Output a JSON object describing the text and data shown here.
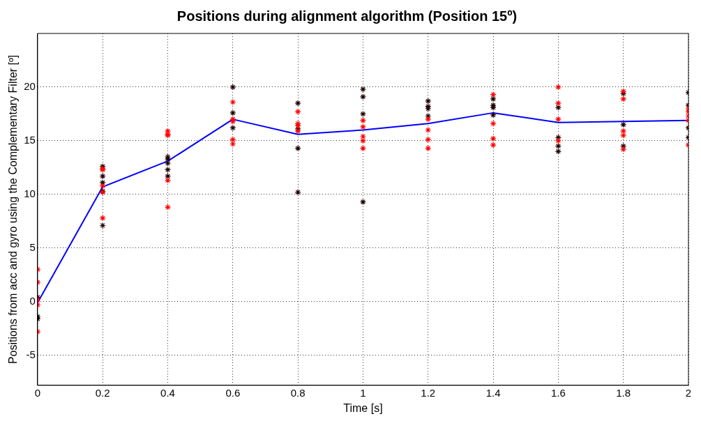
{
  "chart_data": {
    "type": "scatter",
    "title": "Positions during alignment algorithm (Position 15º)",
    "xlabel": "Time [s]",
    "ylabel": "Positions from acc and gyro using the Complementary Filter [º]",
    "xlim": [
      0,
      2
    ],
    "xticks": [
      0,
      0.2,
      0.4,
      0.6,
      0.8,
      1,
      1.2,
      1.4,
      1.6,
      1.8,
      2
    ],
    "ylim": [
      -7.8,
      25
    ],
    "yticks": [
      -5,
      0,
      5,
      10,
      15,
      20
    ],
    "grid": true,
    "legend": false,
    "series": [
      {
        "type": "scatter",
        "color": "#ff0000",
        "marker": "cross",
        "x": [
          0,
          0,
          0,
          0,
          0,
          0.2,
          0.2,
          0.2,
          0.2,
          0.2,
          0.4,
          0.4,
          0.4,
          0.4,
          0.4,
          0.6,
          0.6,
          0.6,
          0.6,
          0.6,
          0.8,
          0.8,
          0.8,
          0.8,
          1,
          1,
          1,
          1,
          1,
          1.2,
          1.2,
          1.2,
          1.2,
          1.4,
          1.4,
          1.4,
          1.4,
          1.6,
          1.6,
          1.6,
          1.6,
          1.8,
          1.8,
          1.8,
          1.8,
          1.8,
          2,
          2,
          2,
          2,
          2
        ],
        "values": [
          3,
          1.8,
          0.2,
          -0.3,
          -2.8,
          12.4,
          12.3,
          10.8,
          10.2,
          7.8,
          15.9,
          15.6,
          15.5,
          11.3,
          8.8,
          18.6,
          17,
          16.8,
          15.1,
          14.7,
          17.7,
          16.6,
          16.4,
          15.9,
          16.9,
          16.3,
          15.4,
          15,
          14.3,
          17,
          16,
          15.1,
          14.3,
          19.3,
          16.6,
          15.2,
          14.6,
          20,
          18.5,
          17,
          15,
          19.6,
          18.9,
          15.9,
          15.5,
          14.2,
          18,
          17.7,
          17.3,
          16.9,
          14.6
        ]
      },
      {
        "type": "scatter",
        "color": "#200000",
        "marker": "cross",
        "x": [
          0,
          0,
          0,
          0.2,
          0.2,
          0.2,
          0.2,
          0.2,
          0.4,
          0.4,
          0.4,
          0.4,
          0.4,
          0.6,
          0.6,
          0.6,
          0.8,
          0.8,
          0.8,
          0.8,
          1,
          1,
          1,
          1,
          1.2,
          1.2,
          1.2,
          1.2,
          1.4,
          1.4,
          1.4,
          1.4,
          1.6,
          1.6,
          1.6,
          1.6,
          1.8,
          1.8,
          1.8,
          2,
          2,
          2,
          2
        ],
        "values": [
          0.4,
          -1.4,
          -1.6,
          12.6,
          11.7,
          11.1,
          10.3,
          7.1,
          13.5,
          13.3,
          12.9,
          12.3,
          11.7,
          20,
          17.6,
          16.2,
          18.5,
          16.1,
          14.3,
          10.2,
          19.8,
          19.1,
          17.5,
          9.3,
          18.7,
          18.2,
          18,
          17.3,
          18.9,
          18.3,
          18.1,
          17.4,
          18.1,
          15.3,
          14.5,
          14,
          19.4,
          16.5,
          14.5,
          19.5,
          18.3,
          16.2,
          15.3
        ]
      },
      {
        "type": "line",
        "color": "#0000ff",
        "marker": "none",
        "line_style": "solid",
        "x": [
          0,
          0.2,
          0.4,
          0.6,
          0.8,
          1,
          1.2,
          1.4,
          1.6,
          1.8,
          2
        ],
        "values": [
          -0.1,
          10.7,
          13.1,
          17,
          15.6,
          16,
          16.6,
          17.6,
          16.7,
          16.8,
          16.9
        ]
      }
    ]
  }
}
